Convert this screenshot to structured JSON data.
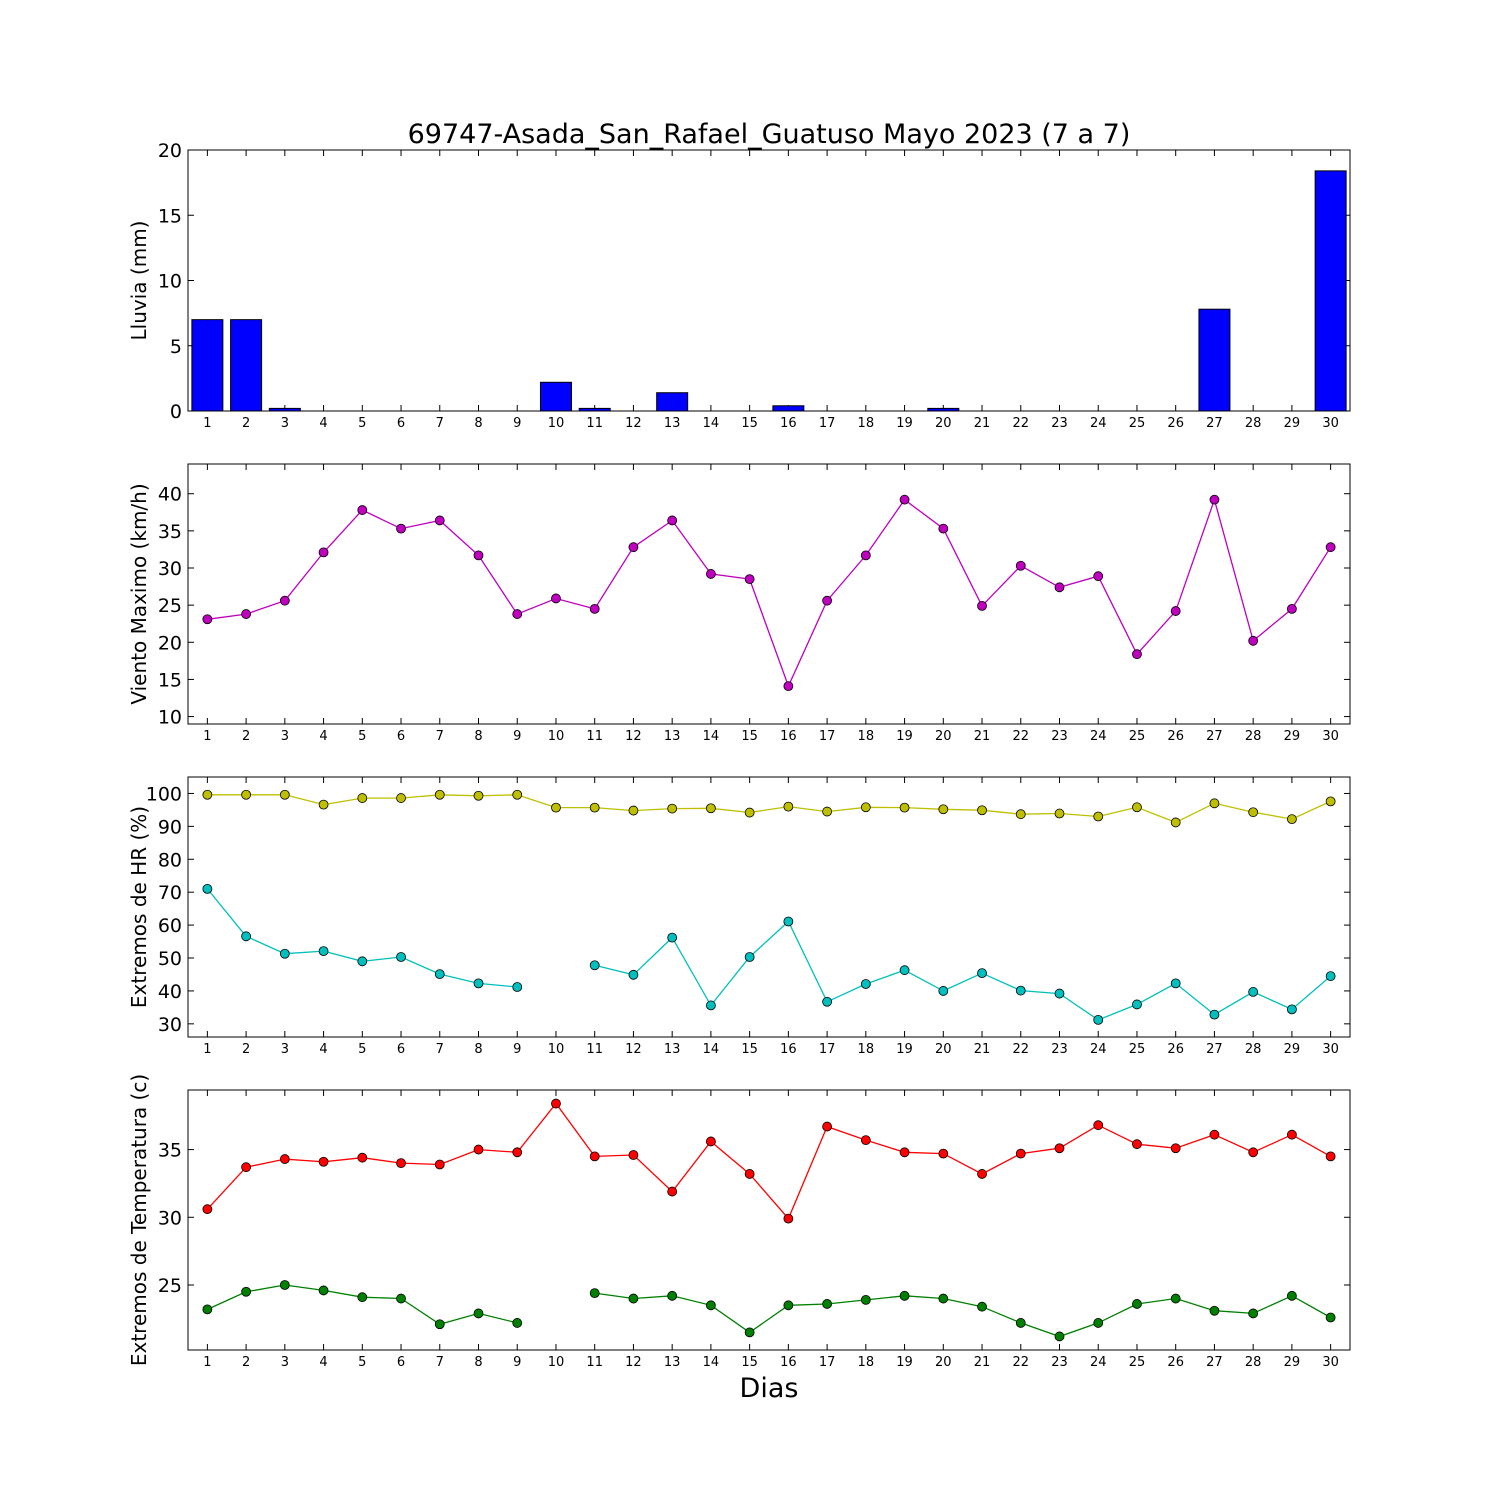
{
  "title": "69747-Asada_San_Rafael_Guatuso Mayo 2023  (7 a 7)",
  "xlabel": "Dias",
  "chart_data": [
    {
      "id": "lluvia",
      "type": "bar",
      "ylabel": "Lluvia (mm)",
      "ylim": [
        0,
        20
      ],
      "yticks": [
        0,
        5,
        10,
        15,
        20
      ],
      "x": [
        1,
        2,
        3,
        4,
        5,
        6,
        7,
        8,
        9,
        10,
        11,
        12,
        13,
        14,
        15,
        16,
        17,
        18,
        19,
        20,
        21,
        22,
        23,
        24,
        25,
        26,
        27,
        28,
        29,
        30
      ],
      "series": [
        {
          "color": "#0000ff",
          "values": [
            7.0,
            7.0,
            0.2,
            0,
            0,
            0,
            0,
            0,
            0,
            2.2,
            0.2,
            0,
            1.4,
            0,
            0,
            0.4,
            0,
            0,
            0,
            0.2,
            0,
            0,
            0,
            0,
            0,
            0,
            7.8,
            0,
            0,
            18.4
          ]
        }
      ]
    },
    {
      "id": "viento",
      "type": "line",
      "ylabel": "Viento Maximo (km/h)",
      "ylim": [
        9,
        44
      ],
      "yticks": [
        10,
        15,
        20,
        25,
        30,
        35,
        40
      ],
      "x": [
        1,
        2,
        3,
        4,
        5,
        6,
        7,
        8,
        9,
        10,
        11,
        12,
        13,
        14,
        15,
        16,
        17,
        18,
        19,
        20,
        21,
        22,
        23,
        24,
        25,
        26,
        27,
        28,
        29,
        30
      ],
      "series": [
        {
          "color": "#bf00bf",
          "values": [
            23.1,
            23.8,
            25.6,
            32.1,
            37.8,
            35.3,
            36.4,
            31.7,
            23.8,
            25.9,
            24.5,
            32.8,
            36.4,
            29.2,
            28.5,
            14.1,
            25.6,
            31.7,
            39.2,
            35.3,
            24.9,
            30.3,
            27.4,
            28.9,
            18.4,
            24.2,
            39.2,
            20.2,
            24.5,
            32.8
          ]
        }
      ]
    },
    {
      "id": "hr",
      "type": "line",
      "ylabel": "Extremos de HR (%)",
      "ylim": [
        26,
        105
      ],
      "yticks": [
        30,
        40,
        50,
        60,
        70,
        80,
        90,
        100
      ],
      "x": [
        1,
        2,
        3,
        4,
        5,
        6,
        7,
        8,
        9,
        10,
        11,
        12,
        13,
        14,
        15,
        16,
        17,
        18,
        19,
        20,
        21,
        22,
        23,
        24,
        25,
        26,
        27,
        28,
        29,
        30
      ],
      "series": [
        {
          "color": "#bfbf00",
          "values": [
            99.6,
            99.6,
            99.6,
            96.6,
            98.6,
            98.6,
            99.6,
            99.3,
            99.6,
            95.7,
            95.7,
            94.8,
            95.4,
            95.5,
            94.2,
            96.0,
            94.5,
            95.8,
            95.7,
            95.2,
            94.9,
            93.7,
            93.9,
            93.0,
            95.8,
            91.2,
            97.0,
            94.3,
            92.2,
            97.6
          ]
        },
        {
          "color": "#00bfbf",
          "values": [
            71.0,
            56.6,
            51.3,
            52.1,
            49.0,
            50.3,
            45.1,
            42.3,
            41.2,
            null,
            47.8,
            44.9,
            56.2,
            35.6,
            50.3,
            61.1,
            36.7,
            42.1,
            46.3,
            40.0,
            45.4,
            40.1,
            39.2,
            31.2,
            35.9,
            42.3,
            32.8,
            39.7,
            34.4,
            44.5
          ]
        }
      ]
    },
    {
      "id": "temp",
      "type": "line",
      "ylabel": "Extremos de Temperatura (c)",
      "ylim": [
        20.2,
        39.4
      ],
      "yticks": [
        25,
        30,
        35
      ],
      "x": [
        1,
        2,
        3,
        4,
        5,
        6,
        7,
        8,
        9,
        10,
        11,
        12,
        13,
        14,
        15,
        16,
        17,
        18,
        19,
        20,
        21,
        22,
        23,
        24,
        25,
        26,
        27,
        28,
        29,
        30
      ],
      "series": [
        {
          "color": "#ff0000",
          "values": [
            30.6,
            33.7,
            34.3,
            34.1,
            34.4,
            34.0,
            33.9,
            35.0,
            34.8,
            38.4,
            34.5,
            34.6,
            31.9,
            35.6,
            33.2,
            29.9,
            36.7,
            35.7,
            34.8,
            34.7,
            33.2,
            34.7,
            35.1,
            36.8,
            35.4,
            35.1,
            36.1,
            34.8,
            36.1,
            34.5
          ]
        },
        {
          "color": "#008000",
          "values": [
            23.2,
            24.5,
            25.0,
            24.6,
            24.1,
            24.0,
            22.1,
            22.9,
            22.2,
            null,
            24.4,
            24.0,
            24.2,
            23.5,
            21.5,
            23.5,
            23.6,
            23.9,
            24.2,
            24.0,
            23.4,
            22.2,
            21.2,
            22.2,
            23.6,
            24.0,
            23.1,
            22.9,
            24.2,
            22.6
          ]
        }
      ]
    }
  ]
}
